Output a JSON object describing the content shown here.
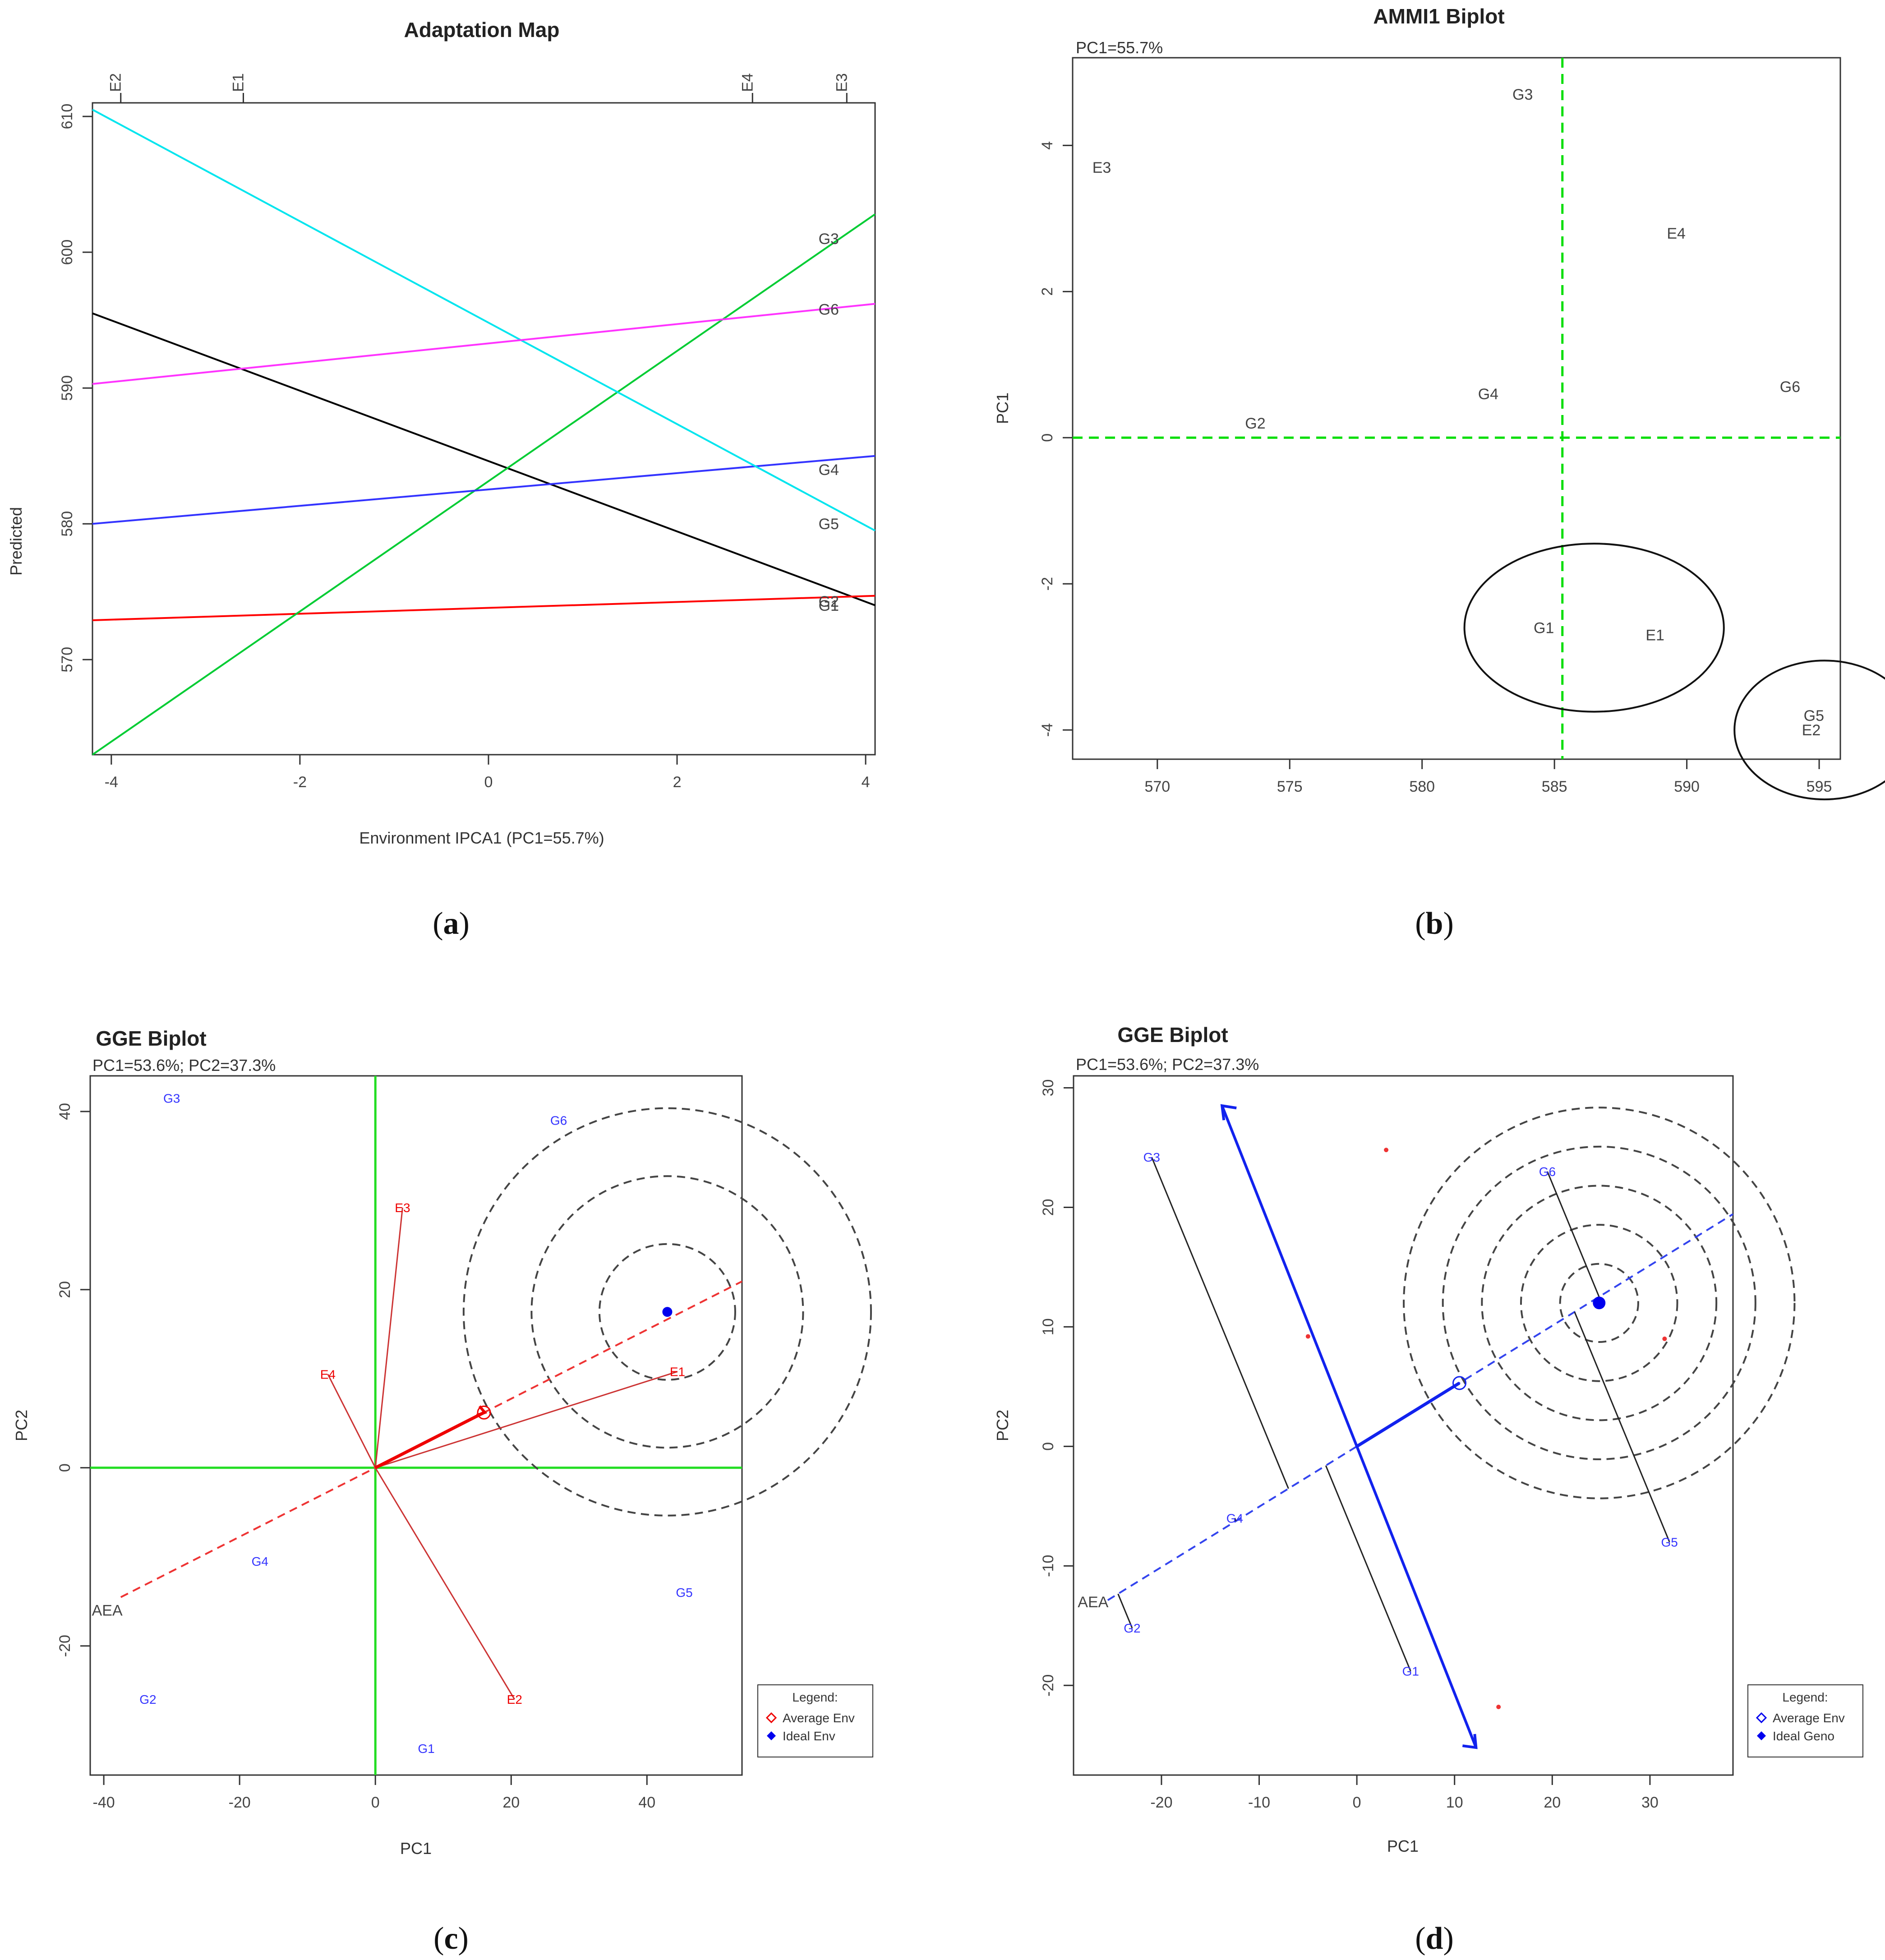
{
  "figure": {
    "panels": [
      {
        "letter": "a",
        "title": "Adaptation Map"
      },
      {
        "letter": "b",
        "title": "AMMI1 Biplot",
        "subtitle": "PC1=55.7%"
      },
      {
        "letter": "c",
        "title": "GGE Biplot",
        "subtitle": "PC1=53.6%; PC2=37.3%"
      },
      {
        "letter": "d",
        "title": "GGE Biplot",
        "subtitle": "PC1=53.6%; PC2=37.3%"
      }
    ]
  },
  "chart_data": [
    {
      "type": "line",
      "title": "Adaptation Map",
      "xlabel": "Environment IPCA1 (PC1=55.7%)",
      "ylabel": "Predicted",
      "xlim": [
        -4.2,
        4.1
      ],
      "ylim": [
        563,
        611
      ],
      "xticks": [
        -4,
        -2,
        0,
        2,
        4
      ],
      "yticks": [
        570,
        580,
        590,
        600,
        610
      ],
      "top_axis": [
        {
          "label": "E2",
          "x": -3.9
        },
        {
          "label": "E1",
          "x": -2.6
        },
        {
          "label": "E4",
          "x": 2.8
        },
        {
          "label": "E3",
          "x": 3.8
        }
      ],
      "series": [
        {
          "name": "G1",
          "color": "#000000",
          "x": [
            -4.2,
            4.1
          ],
          "y": [
            595.5,
            574.0
          ]
        },
        {
          "name": "G2",
          "color": "#ff0000",
          "x": [
            -4.2,
            4.1
          ],
          "y": [
            572.9,
            574.7
          ]
        },
        {
          "name": "G3",
          "color": "#00cc33",
          "x": [
            -4.2,
            4.1
          ],
          "y": [
            563.0,
            602.8
          ]
        },
        {
          "name": "G4",
          "color": "#3333ff",
          "x": [
            -4.2,
            4.1
          ],
          "y": [
            580.0,
            585.0
          ]
        },
        {
          "name": "G5",
          "color": "#00e5ee",
          "x": [
            -4.2,
            4.1
          ],
          "y": [
            610.5,
            579.5
          ]
        },
        {
          "name": "G6",
          "color": "#ff33ff",
          "x": [
            -4.2,
            4.1
          ],
          "y": [
            590.3,
            596.2
          ]
        }
      ],
      "end_labels": [
        {
          "text": "G3",
          "x": 3.5,
          "y": 601.0
        },
        {
          "text": "G6",
          "x": 3.5,
          "y": 595.8
        },
        {
          "text": "G4",
          "x": 3.5,
          "y": 584.0
        },
        {
          "text": "G5",
          "x": 3.5,
          "y": 580.0
        },
        {
          "text": "G2",
          "x": 3.5,
          "y": 574.3
        },
        {
          "text": "G1",
          "x": 3.5,
          "y": 574.0
        }
      ]
    },
    {
      "type": "scatter",
      "title": "AMMI1 Biplot",
      "subtitle": "PC1=55.7%",
      "xlabel": "",
      "ylabel": "PC1",
      "xlim": [
        566.8,
        595.8
      ],
      "ylim": [
        -4.4,
        5.2
      ],
      "xticks": [
        570,
        575,
        580,
        585,
        590,
        595
      ],
      "yticks": [
        -4,
        -2,
        0,
        2,
        4
      ],
      "reference_lines": {
        "x": 585.3,
        "y": 0,
        "color": "#00dd00"
      },
      "genotypes": [
        {
          "label": "G1",
          "x": 584.6,
          "y": -2.6
        },
        {
          "label": "G2",
          "x": 573.7,
          "y": 0.2
        },
        {
          "label": "G3",
          "x": 583.8,
          "y": 4.7
        },
        {
          "label": "G4",
          "x": 582.5,
          "y": 0.6
        },
        {
          "label": "G5",
          "x": 594.8,
          "y": -3.8
        },
        {
          "label": "G6",
          "x": 593.9,
          "y": 0.7
        }
      ],
      "environments": [
        {
          "label": "E1",
          "x": 588.8,
          "y": -2.7
        },
        {
          "label": "E2",
          "x": 594.7,
          "y": -4.0
        },
        {
          "label": "E3",
          "x": 567.9,
          "y": 3.7
        },
        {
          "label": "E4",
          "x": 589.6,
          "y": 2.8
        }
      ],
      "highlight_circles": [
        {
          "cx": 586.5,
          "cy": -2.6,
          "rx": 4.9,
          "ry": 1.15
        },
        {
          "cx": 595.2,
          "cy": -4.0,
          "rx": 3.4,
          "ry": 0.95
        }
      ]
    },
    {
      "type": "scatter",
      "title": "GGE Biplot",
      "subtitle": "PC1=53.6%; PC2=37.3%",
      "xlabel": "PC1",
      "ylabel": "PC2",
      "xlim": [
        -42,
        54
      ],
      "ylim": [
        -34.5,
        44
      ],
      "xticks": [
        -40,
        -20,
        0,
        20,
        40
      ],
      "yticks": [
        -20,
        0,
        20,
        40
      ],
      "genotypes": [
        {
          "label": "G1",
          "x": 7.5,
          "y": -31.5
        },
        {
          "label": "G2",
          "x": -33.5,
          "y": -26
        },
        {
          "label": "G3",
          "x": -30,
          "y": 41.5
        },
        {
          "label": "G4",
          "x": -17,
          "y": -10.5
        },
        {
          "label": "G5",
          "x": 45.5,
          "y": -14
        },
        {
          "label": "G6",
          "x": 27,
          "y": 39
        }
      ],
      "environments": [
        {
          "label": "E1",
          "x": 44.5,
          "y": 10.8
        },
        {
          "label": "E2",
          "x": 20.5,
          "y": -26
        },
        {
          "label": "E3",
          "x": 4,
          "y": 29.2
        },
        {
          "label": "E4",
          "x": -7,
          "y": 10.5
        }
      ],
      "average_env": {
        "x": 16,
        "y": 6.2
      },
      "ideal_env": {
        "x": 43,
        "y": 17.5
      },
      "aea_label": {
        "text": "AEA",
        "x": -39.5,
        "y": -16
      },
      "concentric_radii": [
        10,
        20,
        30
      ],
      "legend": {
        "title": "Legend:",
        "items": [
          "Average Env",
          "Ideal Env"
        ]
      }
    },
    {
      "type": "scatter",
      "title": "GGE Biplot",
      "subtitle": "PC1=53.6%; PC2=37.3%",
      "xlabel": "PC1",
      "ylabel": "PC2",
      "xlim": [
        -29,
        38.5
      ],
      "ylim": [
        -27.5,
        31
      ],
      "xticks": [
        -20,
        -10,
        0,
        10,
        20,
        30
      ],
      "yticks": [
        -20,
        -10,
        0,
        10,
        20,
        30
      ],
      "genotypes": [
        {
          "label": "G1",
          "x": 5.5,
          "y": -18.8
        },
        {
          "label": "G2",
          "x": -23,
          "y": -15.2
        },
        {
          "label": "G3",
          "x": -21,
          "y": 24.2
        },
        {
          "label": "G4",
          "x": -12.5,
          "y": -6
        },
        {
          "label": "G5",
          "x": 32,
          "y": -8
        },
        {
          "label": "G6",
          "x": 19.5,
          "y": 23
        }
      ],
      "environment_points": [
        {
          "x": 3,
          "y": 24.8
        },
        {
          "x": -5,
          "y": 9.2
        },
        {
          "x": 14.5,
          "y": -21.8
        },
        {
          "x": 31.5,
          "y": 9
        }
      ],
      "average_env": {
        "x": 10.5,
        "y": 5.3
      },
      "ideal_geno": {
        "x": 24.8,
        "y": 12
      },
      "aea_label": {
        "text": "AEA",
        "x": -27,
        "y": -13
      },
      "concentric_radii": [
        4,
        8,
        12,
        16,
        20
      ],
      "legend": {
        "title": "Legend:",
        "items": [
          "Average Env",
          "Ideal Geno"
        ]
      }
    }
  ]
}
